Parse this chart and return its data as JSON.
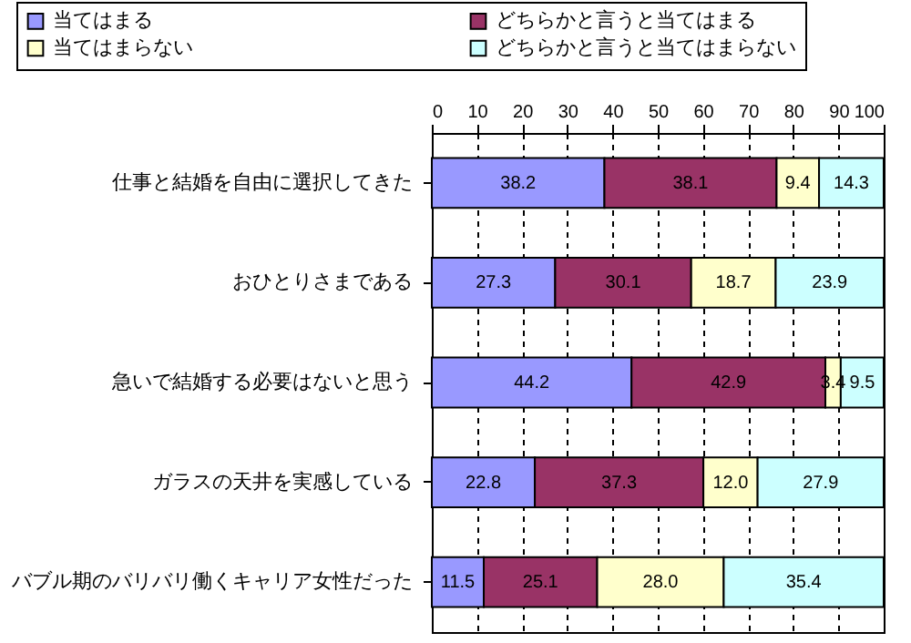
{
  "chart_data": {
    "type": "bar",
    "orientation": "horizontal",
    "stacked": true,
    "categories": [
      "仕事と結婚を自由に選択してきた",
      "おひとりさまである",
      "急いで結婚する必要はないと思う",
      "ガラスの天井を実感している",
      "バブル期のバリバリ働くキャリア女性だった"
    ],
    "series": [
      {
        "name": "当てはまる",
        "color": "#9999ff",
        "values": [
          38.2,
          27.3,
          44.2,
          22.8,
          11.5
        ]
      },
      {
        "name": "どちらかと言うと当てはまる",
        "color": "#993366",
        "values": [
          38.1,
          30.1,
          42.9,
          37.3,
          25.1
        ]
      },
      {
        "name": "当てはまらない",
        "color": "#ffffcc",
        "values": [
          9.4,
          18.7,
          3.4,
          12.0,
          28.0
        ],
        "value_labels": [
          "9.4",
          "18.7",
          "3.4",
          "12.0",
          "28.0"
        ]
      },
      {
        "name": "どちらかと言うと当てはまらない",
        "color": "#ccffff",
        "values": [
          14.3,
          23.9,
          9.5,
          27.9,
          35.4
        ]
      }
    ],
    "xlim": [
      0,
      100
    ],
    "xticks": [
      0,
      10,
      20,
      30,
      40,
      50,
      60,
      70,
      80,
      90,
      100
    ],
    "grid": "x",
    "legend": "top",
    "data_labels": true
  }
}
